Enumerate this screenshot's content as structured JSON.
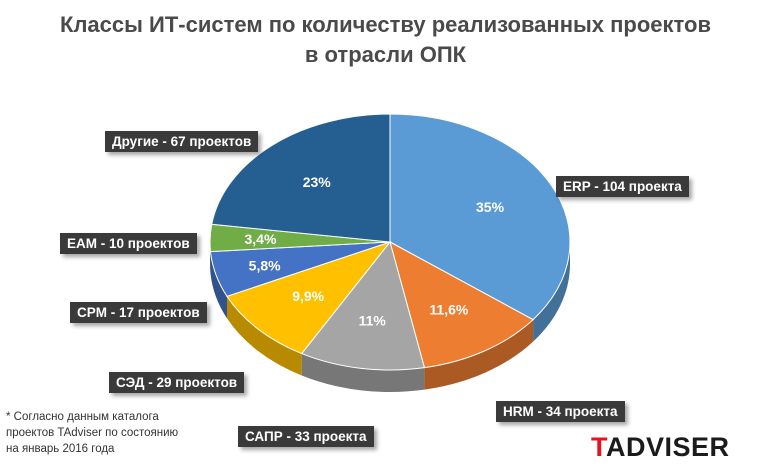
{
  "chart_data": {
    "type": "pie",
    "title_lines": [
      "Классы ИТ-систем по количеству реализованных проектов",
      "в отрасли ОПК"
    ],
    "slices": [
      {
        "category": "ERP",
        "value": 104,
        "percent": "35%",
        "label": "ERP - 104 проекта",
        "color": "#5b9bd5"
      },
      {
        "category": "HRM",
        "value": 34,
        "percent": "11,6%",
        "label": "HRM - 34 проекта",
        "color": "#ed7d31"
      },
      {
        "category": "САПР",
        "value": 33,
        "percent": "11%",
        "label": "САПР - 33 проекта",
        "color": "#a5a5a5"
      },
      {
        "category": "СЭД",
        "value": 29,
        "percent": "9,9%",
        "label": "СЭД - 29 проектов",
        "color": "#ffc000"
      },
      {
        "category": "CPM",
        "value": 17,
        "percent": "5,8%",
        "label": "CPM - 17 проектов",
        "color": "#4472c4"
      },
      {
        "category": "EAM",
        "value": 10,
        "percent": "3,4%",
        "label": "EAM - 10 проектов",
        "color": "#70ad47"
      },
      {
        "category": "Другие",
        "value": 67,
        "percent": "23%",
        "label": "Другие - 67 проектов",
        "color": "#255e91"
      }
    ]
  },
  "footnote_lines": [
    "* Согласно данным каталога",
    "проектов TAdviser по состоянию",
    "на январь 2016 года"
  ],
  "logo": {
    "accent": "T",
    "rest": "ADVISER"
  }
}
